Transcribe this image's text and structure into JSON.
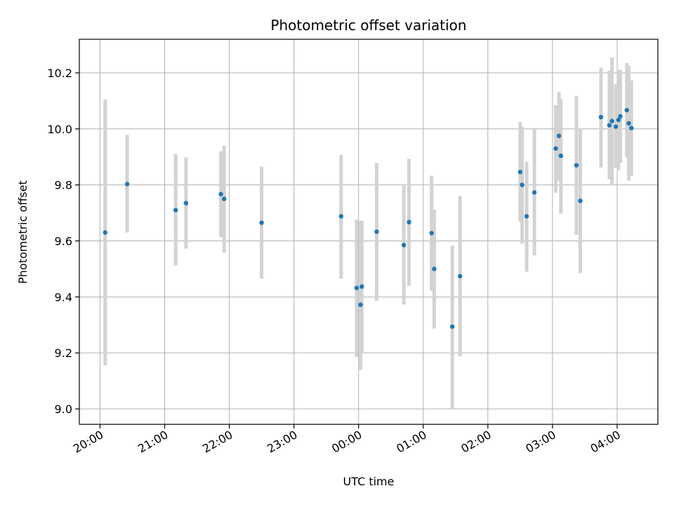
{
  "chart_data": {
    "type": "scatter",
    "title": "Photometric offset variation",
    "xlabel": "UTC time",
    "ylabel": "Photometric offset",
    "x_unit": "hours of night (20:00 = 20)",
    "xlim": [
      19.68,
      28.63
    ],
    "ylim": [
      8.945,
      10.32
    ],
    "x_ticks": [
      {
        "value": 20,
        "label": "20:00"
      },
      {
        "value": 21,
        "label": "21:00"
      },
      {
        "value": 22,
        "label": "22:00"
      },
      {
        "value": 23,
        "label": "23:00"
      },
      {
        "value": 24,
        "label": "00:00"
      },
      {
        "value": 25,
        "label": "01:00"
      },
      {
        "value": 26,
        "label": "02:00"
      },
      {
        "value": 27,
        "label": "03:00"
      },
      {
        "value": 28,
        "label": "04:00"
      }
    ],
    "y_ticks": [
      {
        "value": 9.0,
        "label": "9.0"
      },
      {
        "value": 9.2,
        "label": "9.2"
      },
      {
        "value": 9.4,
        "label": "9.4"
      },
      {
        "value": 9.6,
        "label": "9.6"
      },
      {
        "value": 9.8,
        "label": "9.8"
      },
      {
        "value": 10.0,
        "label": "10.0"
      },
      {
        "value": 10.2,
        "label": "10.2"
      }
    ],
    "grid": true,
    "point_color": "#1f77b4",
    "errorbar_color": "#d3d3d3",
    "points": [
      {
        "x": 20.08,
        "y": 9.63,
        "lo": 9.155,
        "hi": 10.105
      },
      {
        "x": 20.42,
        "y": 9.803,
        "lo": 9.63,
        "hi": 9.978
      },
      {
        "x": 21.17,
        "y": 9.71,
        "lo": 9.512,
        "hi": 9.91
      },
      {
        "x": 21.33,
        "y": 9.735,
        "lo": 9.572,
        "hi": 9.898
      },
      {
        "x": 21.87,
        "y": 9.767,
        "lo": 9.613,
        "hi": 9.92
      },
      {
        "x": 21.92,
        "y": 9.75,
        "lo": 9.558,
        "hi": 9.94
      },
      {
        "x": 22.5,
        "y": 9.665,
        "lo": 9.465,
        "hi": 9.865
      },
      {
        "x": 23.73,
        "y": 9.688,
        "lo": 9.465,
        "hi": 9.908
      },
      {
        "x": 23.97,
        "y": 9.432,
        "lo": 9.185,
        "hi": 9.675
      },
      {
        "x": 24.03,
        "y": 9.372,
        "lo": 9.14,
        "hi": 9.67
      },
      {
        "x": 24.05,
        "y": 9.437,
        "lo": 9.2,
        "hi": 9.672
      },
      {
        "x": 24.28,
        "y": 9.633,
        "lo": 9.386,
        "hi": 9.878
      },
      {
        "x": 24.7,
        "y": 9.585,
        "lo": 9.373,
        "hi": 9.797
      },
      {
        "x": 24.78,
        "y": 9.667,
        "lo": 9.44,
        "hi": 9.893
      },
      {
        "x": 25.13,
        "y": 9.628,
        "lo": 9.422,
        "hi": 9.833
      },
      {
        "x": 25.17,
        "y": 9.5,
        "lo": 9.287,
        "hi": 9.712
      },
      {
        "x": 25.45,
        "y": 9.294,
        "lo": 9.0,
        "hi": 9.583
      },
      {
        "x": 25.57,
        "y": 9.474,
        "lo": 9.188,
        "hi": 9.76
      },
      {
        "x": 26.5,
        "y": 9.846,
        "lo": 9.668,
        "hi": 10.025
      },
      {
        "x": 26.53,
        "y": 9.8,
        "lo": 9.59,
        "hi": 10.008
      },
      {
        "x": 26.6,
        "y": 9.688,
        "lo": 9.49,
        "hi": 9.883
      },
      {
        "x": 26.72,
        "y": 9.773,
        "lo": 9.548,
        "hi": 9.998
      },
      {
        "x": 27.05,
        "y": 9.93,
        "lo": 9.772,
        "hi": 10.085
      },
      {
        "x": 27.1,
        "y": 9.975,
        "lo": 9.815,
        "hi": 10.132
      },
      {
        "x": 27.13,
        "y": 9.904,
        "lo": 9.698,
        "hi": 10.107
      },
      {
        "x": 27.37,
        "y": 9.87,
        "lo": 9.622,
        "hi": 10.118
      },
      {
        "x": 27.43,
        "y": 9.743,
        "lo": 9.485,
        "hi": 10.0
      },
      {
        "x": 27.75,
        "y": 10.042,
        "lo": 9.862,
        "hi": 10.218
      },
      {
        "x": 27.88,
        "y": 10.013,
        "lo": 9.82,
        "hi": 10.207
      },
      {
        "x": 27.92,
        "y": 10.028,
        "lo": 9.8,
        "hi": 10.255
      },
      {
        "x": 27.98,
        "y": 10.008,
        "lo": 9.86,
        "hi": 10.16
      },
      {
        "x": 28.02,
        "y": 10.032,
        "lo": 9.852,
        "hi": 10.212
      },
      {
        "x": 28.05,
        "y": 10.045,
        "lo": 9.878,
        "hi": 10.21
      },
      {
        "x": 28.15,
        "y": 10.067,
        "lo": 9.898,
        "hi": 10.235
      },
      {
        "x": 28.18,
        "y": 10.02,
        "lo": 9.815,
        "hi": 10.225
      },
      {
        "x": 28.22,
        "y": 10.003,
        "lo": 9.833,
        "hi": 10.173
      }
    ]
  }
}
